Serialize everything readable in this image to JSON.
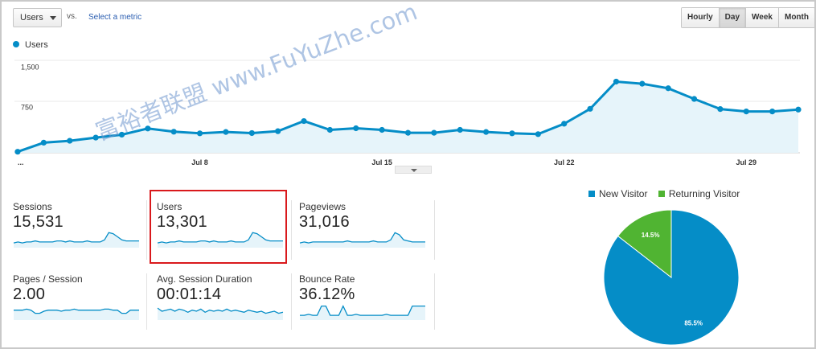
{
  "toolbar": {
    "metric_select": "Users",
    "vs_label": "vs.",
    "select_metric_link": "Select a metric",
    "granularity": [
      "Hourly",
      "Day",
      "Week",
      "Month"
    ],
    "granularity_selected": "Day"
  },
  "main_chart": {
    "legend_label": "Users",
    "series_color": "#058dc7",
    "fill_color": "#e6f4fa",
    "y_ticks": [
      "1,500",
      "750"
    ],
    "x_tick_labels": [
      "...",
      "Jul 8",
      "Jul 15",
      "Jul 22",
      "Jul 29"
    ]
  },
  "chart_data": {
    "type": "area",
    "series": [
      {
        "name": "Users",
        "values": [
          20,
          190,
          225,
          285,
          340,
          455,
          395,
          365,
          390,
          370,
          405,
          595,
          430,
          460,
          430,
          375,
          375,
          430,
          390,
          365,
          350,
          545,
          825,
          1335,
          1295,
          1210,
          1010,
          820,
          775,
          775,
          810
        ]
      }
    ],
    "y_ticks": [
      750,
      1500
    ],
    "ylim": [
      0,
      1900
    ],
    "x_labels": [
      {
        "index": 0,
        "label": "..."
      },
      {
        "index": 7,
        "label": "Jul 8"
      },
      {
        "index": 14,
        "label": "Jul 15"
      },
      {
        "index": 21,
        "label": "Jul 22"
      },
      {
        "index": 28,
        "label": "Jul 29"
      }
    ]
  },
  "tiles": [
    {
      "label": "Sessions",
      "value": "15,531",
      "spark": [
        3,
        4,
        3,
        4,
        4,
        5,
        4,
        4,
        4,
        4,
        5,
        5,
        4,
        5,
        4,
        4,
        4,
        5,
        4,
        4,
        4,
        6,
        13,
        12,
        9,
        6,
        5,
        5,
        5,
        5
      ]
    },
    {
      "label": "Users",
      "value": "13,301",
      "spark": [
        3,
        4,
        3,
        4,
        4,
        5,
        4,
        4,
        4,
        4,
        5,
        5,
        4,
        5,
        4,
        4,
        4,
        5,
        4,
        4,
        4,
        6,
        13,
        12,
        9,
        6,
        5,
        5,
        5,
        5
      ]
    },
    {
      "label": "Pageviews",
      "value": "31,016",
      "spark": [
        3,
        4,
        3,
        4,
        4,
        4,
        4,
        4,
        4,
        4,
        4,
        5,
        4,
        4,
        4,
        4,
        4,
        5,
        4,
        4,
        4,
        6,
        13,
        11,
        6,
        5,
        4,
        4,
        4,
        4
      ]
    },
    {
      "label": "Pages / Session",
      "value": "2.00",
      "spark": [
        8,
        8,
        8,
        9,
        8,
        5,
        5,
        7,
        8,
        8,
        8,
        7,
        8,
        8,
        9,
        8,
        8,
        8,
        8,
        8,
        8,
        9,
        9,
        8,
        8,
        5,
        5,
        8,
        8,
        8
      ]
    },
    {
      "label": "Avg. Session Duration",
      "value": "00:01:14",
      "spark": [
        10,
        7,
        8,
        9,
        7,
        9,
        8,
        6,
        8,
        7,
        9,
        6,
        8,
        7,
        8,
        7,
        9,
        7,
        8,
        7,
        6,
        8,
        7,
        6,
        7,
        5,
        6,
        7,
        5,
        6
      ]
    },
    {
      "label": "Bounce Rate",
      "value": "36.12%",
      "spark": [
        3,
        3,
        4,
        3,
        3,
        12,
        12,
        3,
        3,
        3,
        12,
        3,
        3,
        4,
        3,
        3,
        3,
        3,
        3,
        3,
        4,
        3,
        3,
        3,
        3,
        3,
        12,
        12,
        12,
        12
      ]
    }
  ],
  "pie": {
    "legend": [
      {
        "label": "New Visitor",
        "color": "#058dc7"
      },
      {
        "label": "Returning Visitor",
        "color": "#50b432"
      }
    ],
    "slices": [
      {
        "label": "New Visitor",
        "value": 85.5,
        "display": "85.5%",
        "color": "#058dc7"
      },
      {
        "label": "Returning Visitor",
        "value": 14.5,
        "display": "14.5%",
        "color": "#50b432"
      }
    ]
  },
  "watermark": "富裕者联盟 www.FuYuZhe.com"
}
